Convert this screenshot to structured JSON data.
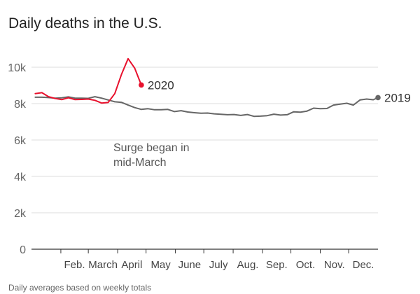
{
  "chart_data": {
    "type": "line",
    "title": "Daily deaths in the U.S.",
    "note": "Daily averages based on weekly totals",
    "annotation": "Surge began in mid-March",
    "annotation_lines": [
      "Surge began in",
      "mid-March"
    ],
    "ylim": [
      0,
      11000
    ],
    "xlim": [
      0,
      366
    ],
    "yticks": [
      {
        "value": 0,
        "label": "0"
      },
      {
        "value": 2000,
        "label": "2k"
      },
      {
        "value": 4000,
        "label": "4k"
      },
      {
        "value": 6000,
        "label": "6k"
      },
      {
        "value": 8000,
        "label": "8k"
      },
      {
        "value": 10000,
        "label": "10k"
      }
    ],
    "month_boundaries": [
      0,
      31,
      60,
      91,
      121,
      152,
      182,
      213,
      244,
      274,
      305,
      335,
      366
    ],
    "xticks": [
      "Feb.",
      "March",
      "April",
      "May",
      "June",
      "July",
      "Aug.",
      "Sep.",
      "Oct.",
      "Nov.",
      "Dec."
    ],
    "grid": true,
    "x_unit": "day of year",
    "series": [
      {
        "name": "2019",
        "color": "#666666",
        "end_marker": true,
        "points": [
          [
            4,
            8350
          ],
          [
            11,
            8350
          ],
          [
            18,
            8330
          ],
          [
            25,
            8300
          ],
          [
            32,
            8320
          ],
          [
            39,
            8370
          ],
          [
            46,
            8300
          ],
          [
            53,
            8300
          ],
          [
            60,
            8290
          ],
          [
            67,
            8380
          ],
          [
            74,
            8300
          ],
          [
            81,
            8200
          ],
          [
            88,
            8100
          ],
          [
            95,
            8070
          ],
          [
            102,
            7920
          ],
          [
            109,
            7780
          ],
          [
            116,
            7680
          ],
          [
            123,
            7720
          ],
          [
            130,
            7660
          ],
          [
            137,
            7660
          ],
          [
            144,
            7680
          ],
          [
            151,
            7560
          ],
          [
            158,
            7610
          ],
          [
            165,
            7540
          ],
          [
            172,
            7500
          ],
          [
            179,
            7470
          ],
          [
            186,
            7480
          ],
          [
            193,
            7440
          ],
          [
            200,
            7410
          ],
          [
            207,
            7390
          ],
          [
            214,
            7400
          ],
          [
            221,
            7350
          ],
          [
            228,
            7400
          ],
          [
            235,
            7300
          ],
          [
            242,
            7310
          ],
          [
            249,
            7340
          ],
          [
            256,
            7420
          ],
          [
            263,
            7370
          ],
          [
            270,
            7390
          ],
          [
            277,
            7550
          ],
          [
            284,
            7530
          ],
          [
            291,
            7590
          ],
          [
            298,
            7750
          ],
          [
            305,
            7720
          ],
          [
            312,
            7730
          ],
          [
            319,
            7920
          ],
          [
            326,
            7970
          ],
          [
            333,
            8020
          ],
          [
            340,
            7920
          ],
          [
            347,
            8200
          ],
          [
            354,
            8250
          ],
          [
            361,
            8210
          ],
          [
            366,
            8330
          ]
        ]
      },
      {
        "name": "2020",
        "color": "#e8112d",
        "end_marker": true,
        "points": [
          [
            4,
            8550
          ],
          [
            11,
            8600
          ],
          [
            18,
            8380
          ],
          [
            25,
            8280
          ],
          [
            32,
            8220
          ],
          [
            39,
            8320
          ],
          [
            46,
            8220
          ],
          [
            53,
            8230
          ],
          [
            60,
            8250
          ],
          [
            67,
            8180
          ],
          [
            74,
            8030
          ],
          [
            81,
            8060
          ],
          [
            88,
            8550
          ],
          [
            95,
            9600
          ],
          [
            102,
            10470
          ],
          [
            109,
            9950
          ],
          [
            116,
            9020
          ]
        ]
      }
    ]
  }
}
